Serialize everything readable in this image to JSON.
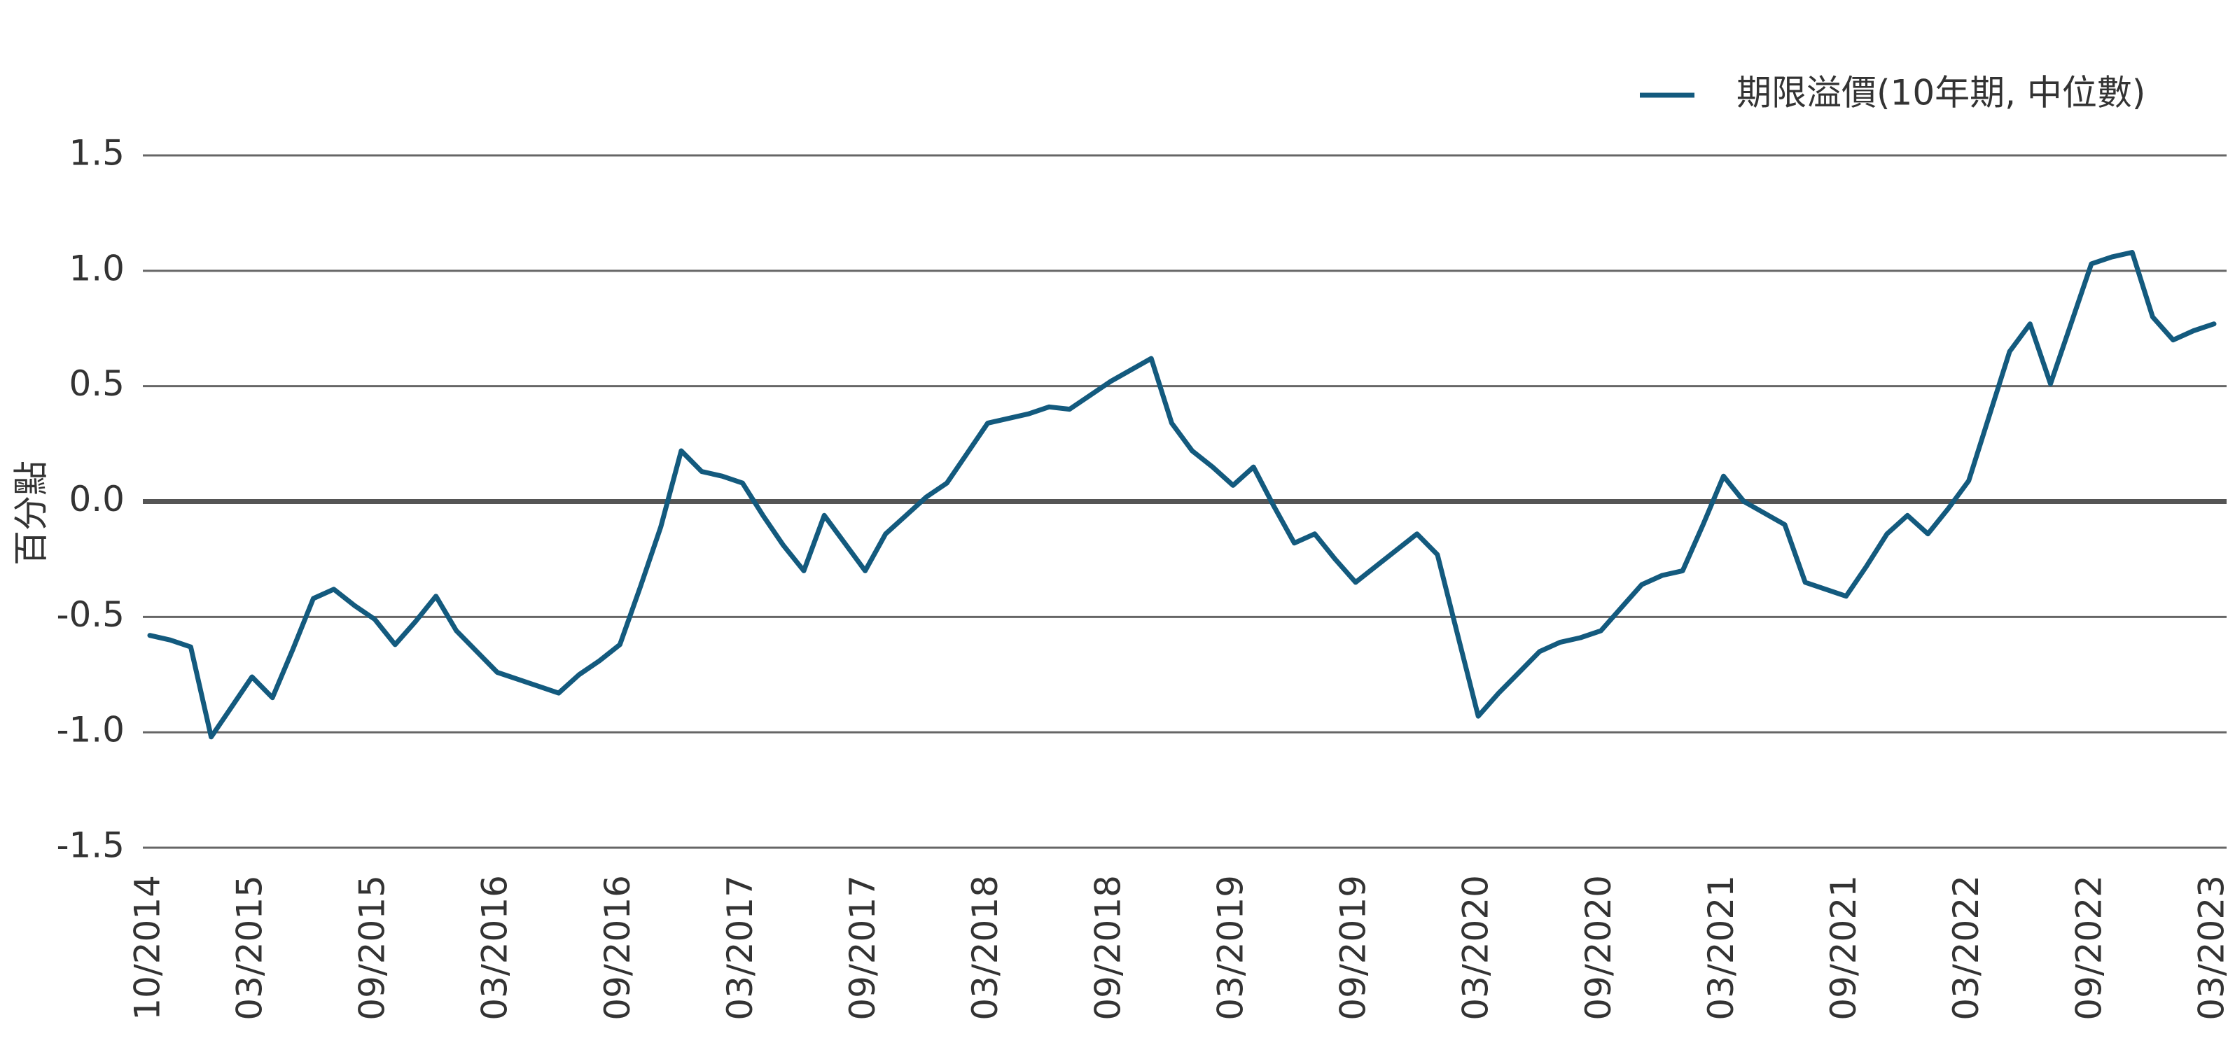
{
  "chart_data": {
    "type": "line",
    "y_label": "百分點",
    "categories": [
      "10/2014",
      null,
      null,
      null,
      null,
      "03/2015",
      null,
      null,
      null,
      null,
      null,
      "09/2015",
      null,
      null,
      null,
      null,
      null,
      "03/2016",
      null,
      null,
      null,
      null,
      null,
      "09/2016",
      null,
      null,
      null,
      null,
      null,
      "03/2017",
      null,
      null,
      null,
      null,
      null,
      "09/2017",
      null,
      null,
      null,
      null,
      null,
      "03/2018",
      null,
      null,
      null,
      null,
      null,
      "09/2018",
      null,
      null,
      null,
      null,
      null,
      "03/2019",
      null,
      null,
      null,
      null,
      null,
      "09/2019",
      null,
      null,
      null,
      null,
      null,
      "03/2020",
      null,
      null,
      null,
      null,
      null,
      "09/2020",
      null,
      null,
      null,
      null,
      null,
      "03/2021",
      null,
      null,
      null,
      null,
      null,
      "09/2021",
      null,
      null,
      null,
      null,
      null,
      "03/2022",
      null,
      null,
      null,
      null,
      null,
      "09/2022",
      null,
      null,
      null,
      null,
      null,
      "03/2023"
    ],
    "series": [
      {
        "name": "期限溢價(10年期, 中位數)",
        "color": "#135a7e",
        "values": [
          -0.58,
          -0.6,
          -0.63,
          -1.02,
          -0.89,
          -0.76,
          -0.85,
          -0.64,
          -0.42,
          -0.38,
          -0.45,
          -0.51,
          -0.62,
          -0.52,
          -0.41,
          -0.56,
          -0.65,
          -0.74,
          -0.77,
          -0.8,
          -0.83,
          -0.75,
          -0.69,
          -0.62,
          -0.37,
          -0.11,
          0.22,
          0.13,
          0.11,
          0.08,
          -0.06,
          -0.19,
          -0.3,
          -0.06,
          -0.18,
          -0.3,
          -0.14,
          -0.06,
          0.02,
          0.08,
          0.21,
          0.34,
          0.36,
          0.38,
          0.41,
          0.4,
          0.46,
          0.52,
          0.57,
          0.62,
          0.34,
          0.22,
          0.15,
          0.07,
          0.15,
          -0.02,
          -0.18,
          -0.14,
          -0.25,
          -0.35,
          -0.28,
          -0.21,
          -0.14,
          -0.23,
          -0.58,
          -0.93,
          -0.83,
          -0.74,
          -0.65,
          -0.61,
          -0.59,
          -0.56,
          -0.46,
          -0.36,
          -0.32,
          -0.3,
          -0.1,
          0.11,
          0.0,
          -0.05,
          -0.1,
          -0.35,
          -0.38,
          -0.41,
          -0.28,
          -0.14,
          -0.06,
          -0.14,
          -0.03,
          0.09,
          0.37,
          0.65,
          0.77,
          0.51,
          0.77,
          1.03,
          1.06,
          1.08,
          0.8,
          0.7,
          0.74,
          0.77
        ]
      }
    ],
    "ylim": [
      -1.5,
      1.5
    ],
    "yticks": [
      -1.5,
      {
        "value": -1,
        "label": "-1.0"
      },
      -0.5,
      {
        "value": 0,
        "label": "0.0"
      },
      0.5,
      {
        "value": 1,
        "label": "1.0"
      },
      1.5
    ],
    "grid": true,
    "legend": "top-right"
  }
}
